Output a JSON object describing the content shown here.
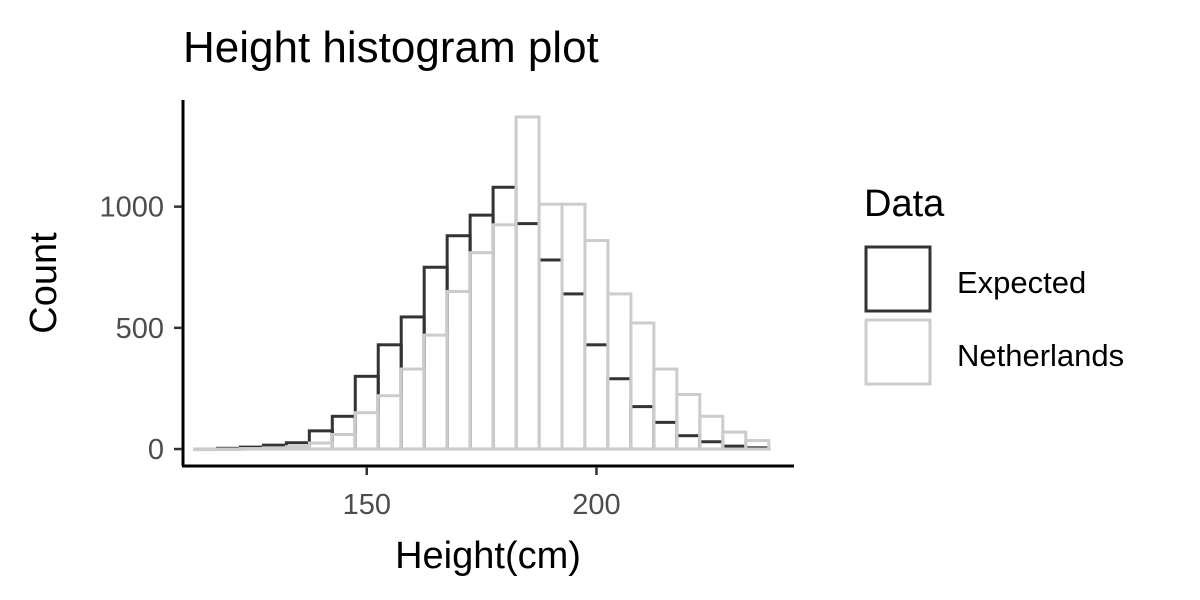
{
  "chart_data": {
    "type": "bar",
    "title": "Height histogram plot",
    "xlabel": "Height(cm)",
    "ylabel": "Count",
    "xlim": [
      110,
      243
    ],
    "ylim": [
      -70,
      1440
    ],
    "xticks": [
      150,
      200
    ],
    "yticks": [
      0,
      500,
      1000
    ],
    "bin_width": 5,
    "legend": {
      "title": "Data",
      "position": "right"
    },
    "series": [
      {
        "name": "Expected",
        "color": "#333333",
        "bins": [
          115,
          120,
          125,
          130,
          135,
          140,
          145,
          150,
          155,
          160,
          165,
          170,
          175,
          180,
          185,
          190,
          195,
          200,
          205,
          210,
          215,
          220,
          225,
          230,
          235
        ],
        "values": [
          0,
          3,
          8,
          16,
          26,
          75,
          135,
          300,
          430,
          545,
          750,
          880,
          965,
          1080,
          930,
          780,
          640,
          430,
          290,
          175,
          110,
          55,
          30,
          12,
          5
        ]
      },
      {
        "name": "Netherlands",
        "color": "#cccccc",
        "bins": [
          115,
          120,
          125,
          130,
          135,
          140,
          145,
          150,
          155,
          160,
          165,
          170,
          175,
          180,
          185,
          190,
          195,
          200,
          205,
          210,
          215,
          220,
          225,
          230,
          235
        ],
        "values": [
          0,
          0,
          2,
          5,
          10,
          25,
          60,
          150,
          220,
          330,
          470,
          650,
          810,
          925,
          1370,
          1010,
          1010,
          860,
          640,
          520,
          330,
          225,
          135,
          70,
          35
        ]
      }
    ]
  }
}
